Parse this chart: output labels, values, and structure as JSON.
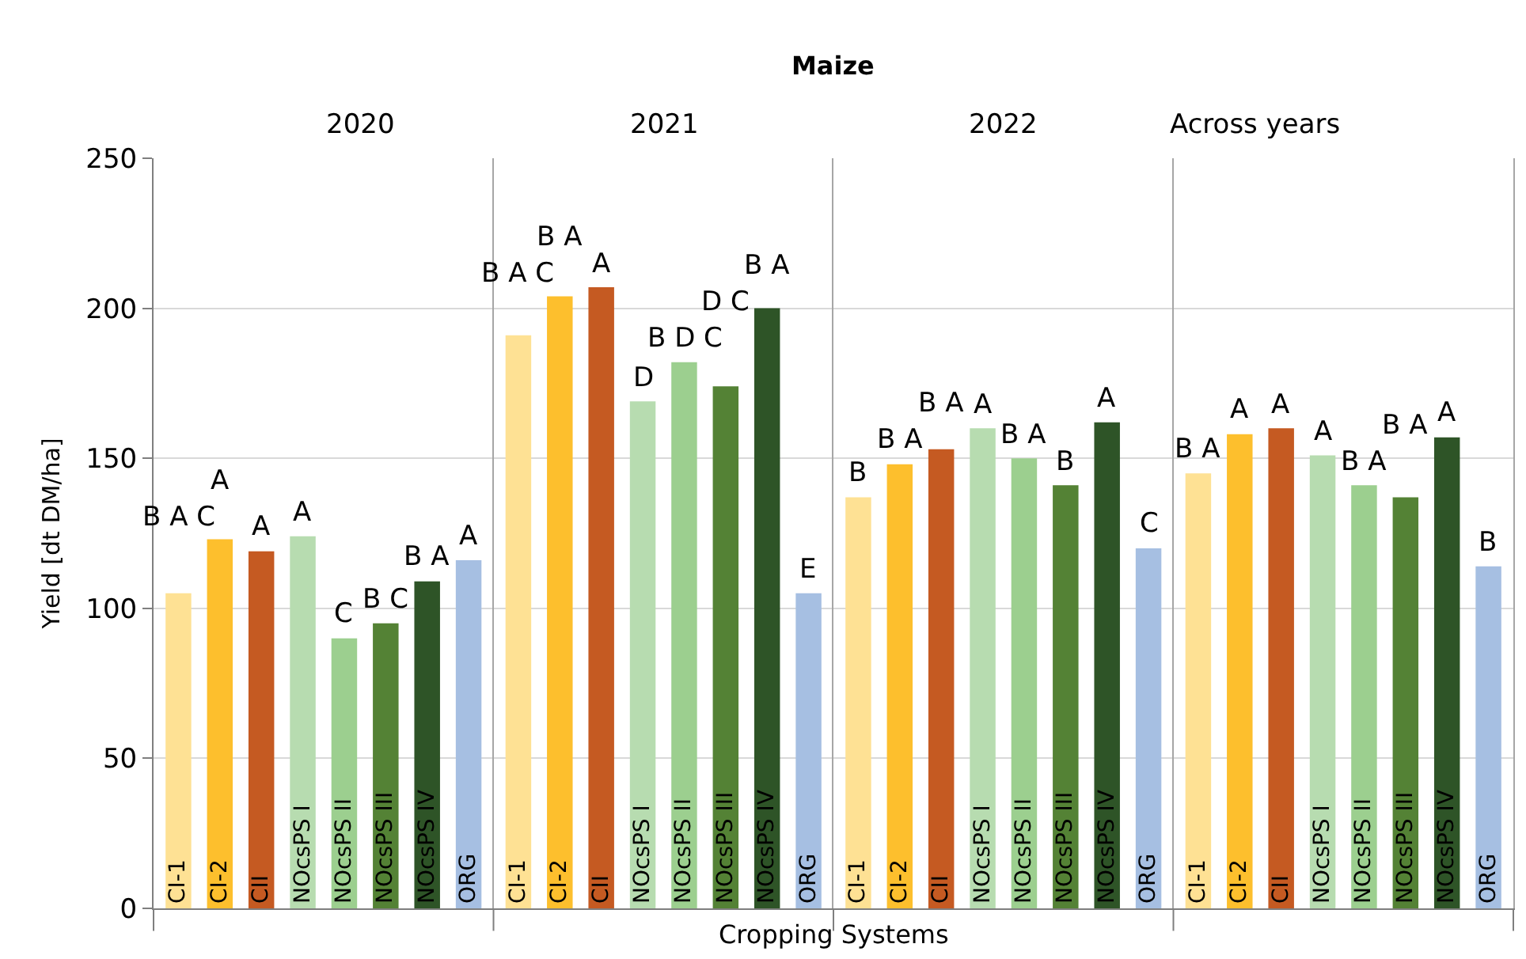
{
  "chart_data": [
    {
      "type": "bar",
      "subtitle": "2020",
      "ylabel": "Yield [dt DM/ha]",
      "annotations": [
        "Maize",
        "Cropping Systems"
      ],
      "categories": [
        "CI-1",
        "CI-2",
        "CII",
        "NOcsPS I",
        "NOcsPS II",
        "NOcsPS III",
        "NOcsPS IV",
        "ORG"
      ],
      "values": [
        105,
        123,
        119,
        124,
        90,
        95,
        109,
        116
      ],
      "value_labels": [
        "B A C",
        "A",
        "A",
        "A",
        "C",
        "B C",
        "B A",
        "A"
      ],
      "colors": [
        "#fee194",
        "#fdbf2d",
        "#c55a22",
        "#b7dcb0",
        "#9ccf8f",
        "#548235",
        "#2e5427",
        "#a6bfe2"
      ],
      "ylim": [
        0,
        250
      ],
      "yticks": [
        0,
        50,
        100,
        150,
        200,
        250
      ],
      "grid": "y"
    },
    {
      "type": "bar",
      "subtitle": "2021",
      "categories": [
        "CI-1",
        "CI-2",
        "CII",
        "NOcsPS I",
        "NOcsPS II",
        "NOcsPS III",
        "NOcsPS IV",
        "ORG"
      ],
      "values": [
        191,
        204,
        207,
        169,
        182,
        174,
        200,
        105
      ],
      "value_labels": [
        "B A C",
        "B A",
        "A",
        "D",
        "B D C",
        "D C",
        "B A",
        "E"
      ],
      "colors": [
        "#fee194",
        "#fdbf2d",
        "#c55a22",
        "#b7dcb0",
        "#9ccf8f",
        "#548235",
        "#2e5427",
        "#a6bfe2"
      ],
      "ylim": [
        0,
        250
      ],
      "yticks": [
        0,
        50,
        100,
        150,
        200,
        250
      ],
      "grid": "y",
      "tick_labels": "x"
    },
    {
      "type": "bar",
      "subtitle": "2022",
      "categories": [
        "CI-1",
        "CI-2",
        "CII",
        "NOcsPS I",
        "NOcsPS II",
        "NOcsPS III",
        "NOcsPS IV",
        "ORG"
      ],
      "values": [
        137,
        148,
        153,
        160,
        150,
        141,
        162,
        120
      ],
      "value_labels": [
        "B",
        "B A",
        "B A",
        "A",
        "B A",
        "B",
        "A",
        "C"
      ],
      "colors": [
        "#fee194",
        "#fdbf2d",
        "#c55a22",
        "#b7dcb0",
        "#9ccf8f",
        "#548235",
        "#2e5427",
        "#a6bfe2"
      ],
      "ylim": [
        0,
        250
      ],
      "yticks": [
        0,
        50,
        100,
        150,
        200,
        250
      ],
      "grid": "y",
      "tick_labels": "x"
    },
    {
      "type": "bar",
      "subtitle": "Across years",
      "categories": [
        "CI-1",
        "CI-2",
        "CII",
        "NOcsPS I",
        "NOcsPS II",
        "NOcsPS III",
        "NOcsPS IV",
        "ORG"
      ],
      "values": [
        145,
        158,
        160,
        151,
        141,
        137,
        157,
        114
      ],
      "value_labels": [
        "B A",
        "A",
        "A",
        "A",
        "B A",
        "B A",
        "A",
        "B"
      ],
      "colors": [
        "#fee194",
        "#fdbf2d",
        "#c55a22",
        "#b7dcb0",
        "#9ccf8f",
        "#548235",
        "#2e5427",
        "#a6bfe2"
      ],
      "ylim": [
        0,
        250
      ],
      "yticks": [
        0,
        50,
        100,
        150,
        200,
        250
      ],
      "grid": "y",
      "tick_labels": "x"
    }
  ]
}
